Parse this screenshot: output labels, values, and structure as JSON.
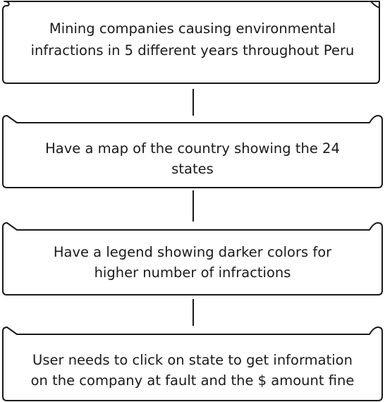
{
  "steps": [
    {
      "lines": [
        "Mining companies causing environmental",
        "infractions in 5 different years throughout Peru"
      ]
    },
    {
      "lines": [
        "Have a map of the country showing the 24",
        "states"
      ]
    },
    {
      "lines": [
        "Have a legend showing darker colors for",
        "higher number of infractions"
      ]
    },
    {
      "lines": [
        "User needs to click on state to get information",
        "on the company at fault and the $ amount fine"
      ]
    }
  ],
  "colors": {
    "stroke": "#1a1a1a",
    "fill": "#ffffff",
    "text": "#1a1a1a"
  }
}
